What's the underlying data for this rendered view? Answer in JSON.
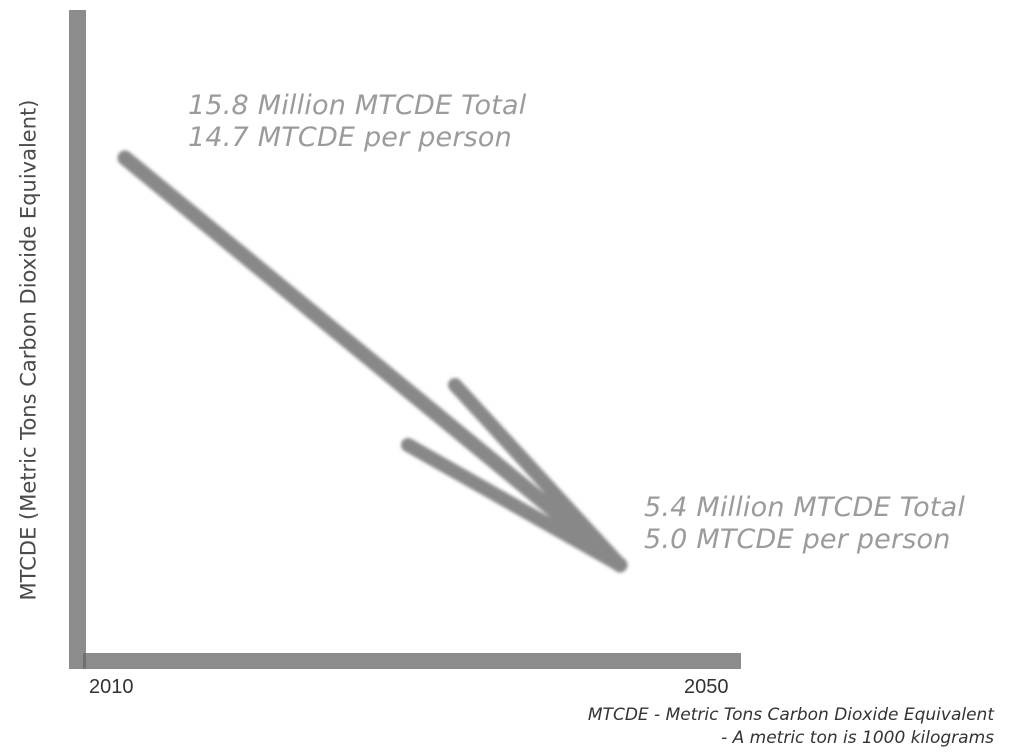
{
  "chart_data": {
    "type": "line",
    "title": "",
    "xlabel": "",
    "ylabel": "MTCDE (Metric Tons Carbon Dioxide Equivalent)",
    "categories": [
      "2010",
      "2050"
    ],
    "x_ticks": [
      "2010",
      "2050"
    ],
    "series": [
      {
        "values": [
          15.8,
          5.4
        ]
      }
    ],
    "annotations": {
      "start": {
        "line1": "15.8 Million MTCDE Total",
        "line2": "14.7 MTCDE per person"
      },
      "end": {
        "line1": "5.4 Million MTCDE Total",
        "line2": "5.0 MTCDE per person"
      }
    },
    "footnote": {
      "line1": "MTCDE - Metric Tons Carbon Dioxide Equivalent",
      "line2": "- A metric ton is 1000 kilograms"
    },
    "grid": false,
    "legend": "none",
    "colors": {
      "axis": "#8c8c8c",
      "arrow": "#888888",
      "annotation": "#9b9b9b",
      "text": "#333333"
    }
  }
}
